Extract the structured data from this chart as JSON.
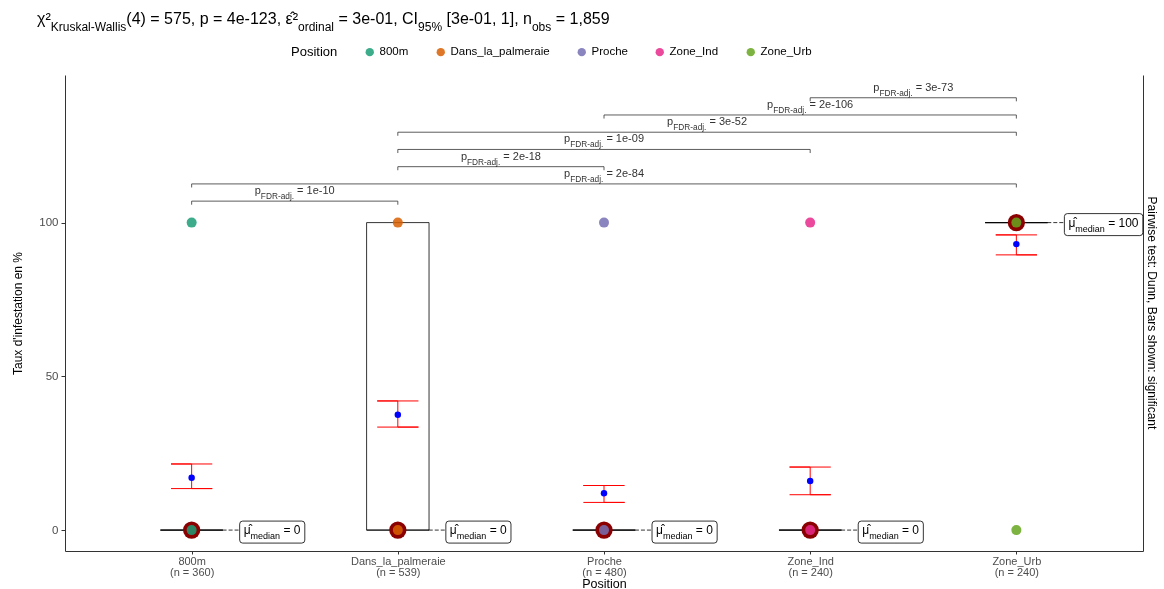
{
  "chart_data": {
    "type": "box",
    "title": "χ²$_{Kruskal-Wallis}$(4) = 575, p = 4e-123, ε̂²$_{ordinal}$ = 3e-01, CI$_{95%}$ [3e-01, 1], n$_{obs}$ = 1,859",
    "xlabel": "Position",
    "ylabel": "Taux d'infestation en %",
    "legend_title": "Position",
    "legend": "top",
    "marker": "circle",
    "categories": [
      "800m\n(n = 360)",
      "Dans_la_palmeraie\n(n = 539)",
      "Proche\n(n = 480)",
      "Zone_Ind\n(n = 240)",
      "Zone_Urb\n(n = 240)"
    ],
    "ylim": [
      -6.8,
      148
    ],
    "yticks": [
      0,
      50,
      100
    ],
    "series": [
      {
        "color": "#000000",
        "boxes": [
          {
            "low": 0,
            "q1": 0,
            "median": 0,
            "q3": 0,
            "high": 0
          },
          {
            "low": 0,
            "q1": 0,
            "median": 0,
            "q3": 100,
            "high": 100
          },
          {
            "low": 0,
            "q1": 0,
            "median": 0,
            "q3": 0,
            "high": 0
          },
          {
            "low": 0,
            "q1": 0,
            "median": 0,
            "q3": 0,
            "high": 0
          },
          {
            "low": 100,
            "q1": 100,
            "median": 100,
            "q3": 100,
            "high": 100
          }
        ]
      },
      {
        "type": "scatter",
        "color": "#8b0000",
        "values": [
          0,
          0,
          0,
          0,
          100
        ]
      },
      {
        "type": "scatter",
        "name": "800m",
        "color": "#1b9e77",
        "x": [
          "800m\n(n = 360)",
          "800m\n(n = 360)"
        ],
        "values": [
          0,
          100
        ]
      },
      {
        "type": "scatter",
        "name": "Dans_la_palmeraie",
        "color": "#d95f02",
        "x": [
          "Dans_la_palmeraie\n(n = 539)",
          "Dans_la_palmeraie\n(n = 539)"
        ],
        "values": [
          0,
          100
        ]
      },
      {
        "type": "scatter",
        "name": "Proche",
        "color": "#7570b3",
        "x": [
          "Proche\n(n = 480)",
          "Proche\n(n = 480)"
        ],
        "values": [
          0,
          100
        ]
      },
      {
        "type": "scatter",
        "name": "Zone_Ind",
        "color": "#e7298a",
        "x": [
          "Zone_Ind\n(n = 240)",
          "Zone_Ind\n(n = 240)"
        ],
        "values": [
          0,
          100
        ]
      },
      {
        "type": "scatter",
        "name": "Zone_Urb",
        "color": "#66a61e",
        "x": [
          "Zone_Urb\n(n = 240)",
          "Zone_Urb\n(n = 240)"
        ],
        "values": [
          0,
          100
        ]
      },
      {
        "type": "scatter",
        "color": "#0000ff",
        "values": [
          17,
          37.5,
          12,
          16,
          93
        ],
        "errors": [
          [
            13.5,
            21.5
          ],
          [
            33.5,
            42
          ],
          [
            9,
            14.5
          ],
          [
            11.5,
            20.5
          ],
          [
            89.5,
            96
          ]
        ]
      }
    ],
    "annotations": [
      "μ̂$_{median}$ = 0",
      "μ̂$_{median}$ = 0",
      "μ̂$_{median}$ = 0",
      "μ̂$_{median}$ = 0",
      "μ̂$_{median}$ = 100",
      "p$_{FDR-adj.}$ = 1e-10",
      "p$_{FDR-adj.}$ = 2e-84",
      "p$_{FDR-adj.}$ = 2e-18",
      "p$_{FDR-adj.}$ = 1e-09",
      "p$_{FDR-adj.}$ = 3e-52",
      "p$_{FDR-adj.}$ = 2e-106",
      "p$_{FDR-adj.}$ = 3e-73",
      "Pairwise test: Dunn, Bars shown: significant"
    ]
  }
}
